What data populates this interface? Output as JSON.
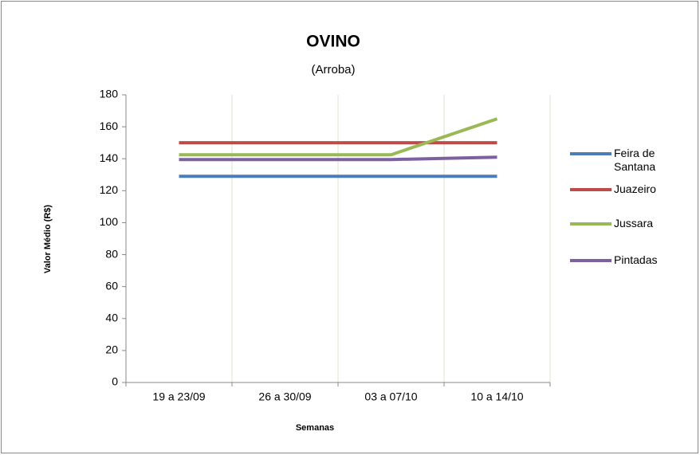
{
  "chart_data": {
    "type": "line",
    "title": "OVINO",
    "subtitle": "(Arroba)",
    "x_label": "Semanas",
    "y_label": "Valor Médio (R$)",
    "categories": [
      "19 a 23/09",
      "26 a 30/09",
      "03 a 07/10",
      "10 a 14/10"
    ],
    "series": [
      {
        "name": "Feira de Santana",
        "color": "#4a7ebb",
        "values": [
          129,
          129,
          129,
          129
        ]
      },
      {
        "name": "Juazeiro",
        "color": "#be4b48",
        "values": [
          150,
          150,
          150,
          150
        ]
      },
      {
        "name": "Jussara",
        "color": "#98b954",
        "values": [
          142.5,
          142.5,
          142.5,
          165
        ]
      },
      {
        "name": "Pintadas",
        "color": "#7d60a0",
        "values": [
          139.5,
          139.5,
          139.5,
          141
        ]
      }
    ],
    "ylim": [
      0,
      180
    ],
    "yticks": [
      0,
      20,
      40,
      60,
      80,
      100,
      120,
      140,
      160,
      180
    ],
    "grid": "vertical",
    "legend": "right"
  }
}
